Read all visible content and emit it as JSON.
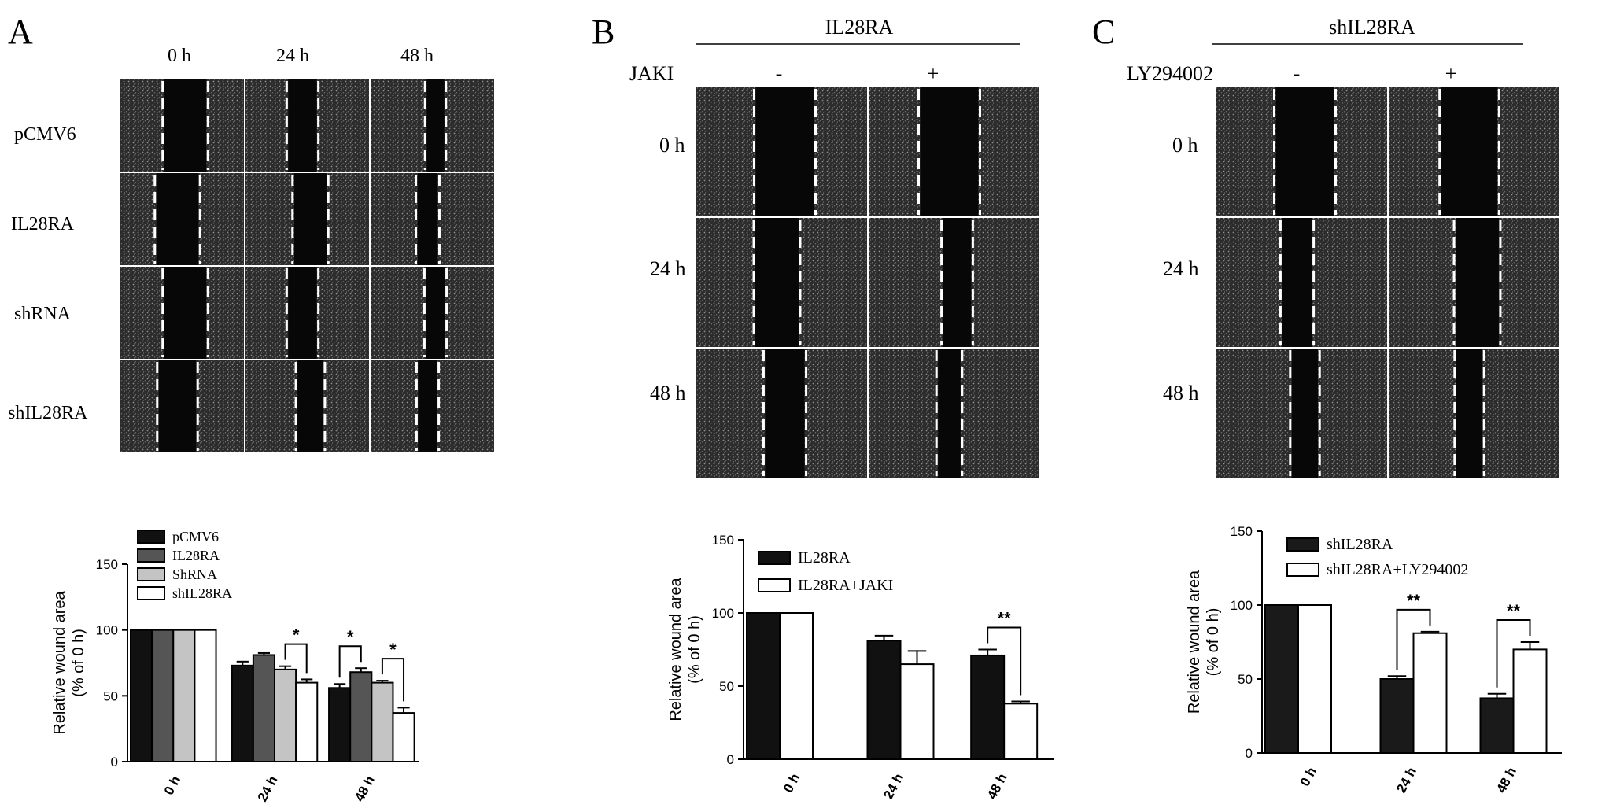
{
  "panels": [
    {
      "letter": "A",
      "header_group": "",
      "condition_label": "",
      "columns": [
        "0 h",
        "24 h",
        "48 h"
      ],
      "rows": [
        "pCMV6",
        "IL28RA",
        "shRNA",
        "shIL28RA"
      ],
      "chart_data": {
        "type": "bar",
        "categories": [
          "0 h",
          "24 h",
          "48 h"
        ],
        "ylabel_line1": "Relative wound area",
        "ylabel_line2": "(% of 0 h)",
        "ylim": [
          0,
          150
        ],
        "yticks": [
          "0",
          "50",
          "100",
          "150"
        ],
        "legend_position": "top-left",
        "series": [
          {
            "name": "pCMV6",
            "color": "#111111",
            "values": [
              100,
              73,
              56
            ],
            "errors": [
              0,
              3,
              3
            ]
          },
          {
            "name": "IL28RA",
            "color": "#555555",
            "values": [
              100,
              81,
              68
            ],
            "errors": [
              0,
              1.5,
              3
            ]
          },
          {
            "name": "ShRNA",
            "color": "#c4c4c4",
            "values": [
              100,
              70,
              60
            ],
            "errors": [
              0,
              2.5,
              1.5
            ]
          },
          {
            "name": "shIL28RA",
            "color": "#ffffff",
            "values": [
              100,
              60,
              37
            ],
            "errors": [
              0,
              2.5,
              4
            ]
          }
        ],
        "significance": [
          {
            "category": 1,
            "from": 2,
            "to": 3,
            "label": "*"
          },
          {
            "category": 2,
            "from": 0,
            "to": 1,
            "label": "*"
          },
          {
            "category": 2,
            "from": 2,
            "to": 3,
            "label": "*"
          }
        ]
      }
    },
    {
      "letter": "B",
      "header_group": "IL28RA",
      "condition_label": "JAKI",
      "columns": [
        "-",
        "+"
      ],
      "rows": [
        "0 h",
        "24 h",
        "48 h"
      ],
      "chart_data": {
        "type": "bar",
        "categories": [
          "0 h",
          "24 h",
          "48 h"
        ],
        "ylabel_line1": "Relative wound area",
        "ylabel_line2": "(% of 0 h)",
        "ylim": [
          0,
          150
        ],
        "yticks": [
          "0",
          "50",
          "100",
          "150"
        ],
        "legend_position": "top-left",
        "series": [
          {
            "name": "IL28RA",
            "color": "#111111",
            "values": [
              100,
              81,
              71
            ],
            "errors": [
              0,
              3.5,
              4
            ]
          },
          {
            "name": "IL28RA+JAKI",
            "color": "#ffffff",
            "values": [
              100,
              65,
              38
            ],
            "errors": [
              0,
              9,
              1.5
            ]
          }
        ],
        "significance": [
          {
            "category": 2,
            "from": 0,
            "to": 1,
            "label": "**"
          }
        ]
      }
    },
    {
      "letter": "C",
      "header_group": "shIL28RA",
      "condition_label": "LY294002",
      "columns": [
        "-",
        "+"
      ],
      "rows": [
        "0 h",
        "24 h",
        "48 h"
      ],
      "chart_data": {
        "type": "bar",
        "categories": [
          "0 h",
          "24 h",
          "48 h"
        ],
        "ylabel_line1": "Relative wound area",
        "ylabel_line2": "(% of 0 h)",
        "ylim": [
          0,
          150
        ],
        "yticks": [
          "0",
          "50",
          "100",
          "150"
        ],
        "legend_position": "top-left",
        "series": [
          {
            "name": "shIL28RA",
            "color": "#1a1a1a",
            "values": [
              100,
              50,
              37
            ],
            "errors": [
              0,
              2,
              3
            ]
          },
          {
            "name": "shIL28RA+LY294002",
            "color": "#ffffff",
            "values": [
              100,
              81,
              70
            ],
            "errors": [
              0,
              1,
              5
            ]
          }
        ],
        "significance": [
          {
            "category": 1,
            "from": 0,
            "to": 1,
            "label": "**"
          },
          {
            "category": 2,
            "from": 0,
            "to": 1,
            "label": "**"
          }
        ]
      }
    }
  ],
  "scratch_gaps": {
    "A": [
      [
        0.62,
        0.42,
        0.26
      ],
      [
        0.62,
        0.48,
        0.3
      ],
      [
        0.62,
        0.42,
        0.28
      ],
      [
        0.55,
        0.38,
        0.28
      ]
    ],
    "B": [
      [
        0.62,
        0.62
      ],
      [
        0.46,
        0.3
      ],
      [
        0.42,
        0.24
      ]
    ],
    "C": [
      [
        0.62,
        0.6
      ],
      [
        0.32,
        0.46
      ],
      [
        0.28,
        0.28
      ]
    ]
  }
}
